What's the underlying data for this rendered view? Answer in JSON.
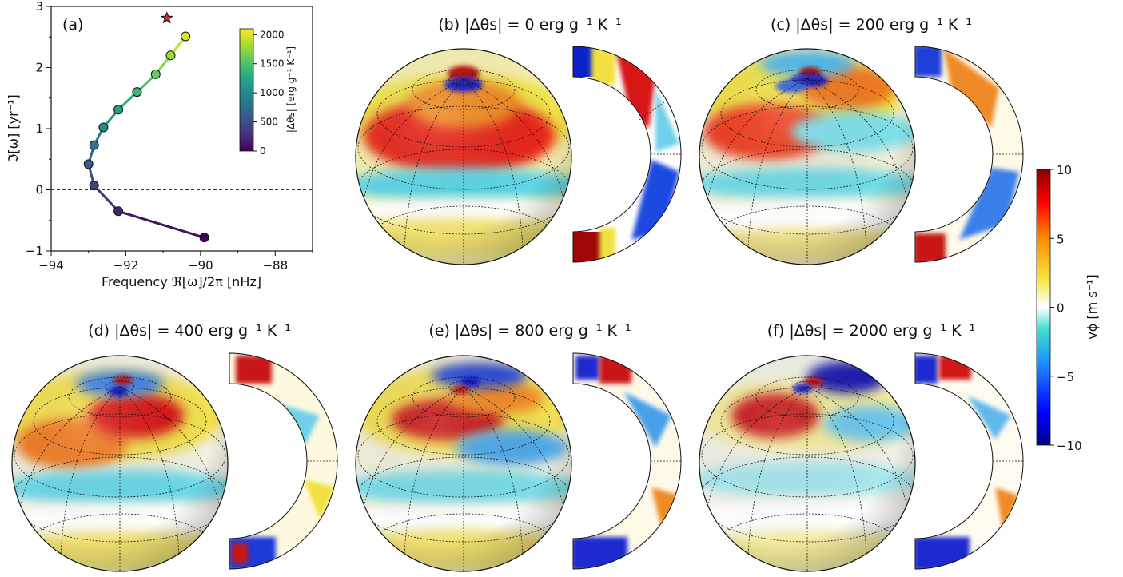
{
  "panel_a": {
    "label": "(a)",
    "xlabel": "Frequency ℜ[ω]/2π [nHz]",
    "ylabel": "ℑ[ω] [yr⁻¹]",
    "colorbar_label": "|Δθs| [erg g⁻¹ K⁻¹]",
    "colorbar_ticks": [
      "0",
      "500",
      "1000",
      "1500",
      "2000"
    ]
  },
  "chart_data": [
    {
      "type": "line",
      "xlim": [
        -94,
        -87
      ],
      "ylim": [
        -1,
        3
      ],
      "xticks": [
        "−94",
        "−92",
        "−90",
        "−88"
      ],
      "yticks": [
        "−1",
        "0",
        "1",
        "2",
        "3"
      ],
      "hline_y": 0,
      "points": [
        {
          "x": -89.9,
          "y": -0.78,
          "ds": 0
        },
        {
          "x": -92.2,
          "y": -0.35,
          "ds": 200
        },
        {
          "x": -92.85,
          "y": 0.07,
          "ds": 400
        },
        {
          "x": -93.0,
          "y": 0.42,
          "ds": 600
        },
        {
          "x": -92.85,
          "y": 0.73,
          "ds": 800
        },
        {
          "x": -92.6,
          "y": 1.02,
          "ds": 1000
        },
        {
          "x": -92.2,
          "y": 1.31,
          "ds": 1200
        },
        {
          "x": -91.7,
          "y": 1.6,
          "ds": 1400
        },
        {
          "x": -91.2,
          "y": 1.89,
          "ds": 1600
        },
        {
          "x": -90.8,
          "y": 2.2,
          "ds": 1800
        },
        {
          "x": -90.4,
          "y": 2.51,
          "ds": 2000
        }
      ],
      "star": {
        "x": -90.9,
        "y": 2.81
      },
      "color_range": [
        0,
        2100
      ]
    }
  ],
  "panels": [
    {
      "id": "b",
      "title": "(b) |Δθs| = 0 erg g⁻¹ K⁻¹"
    },
    {
      "id": "c",
      "title": "(c) |Δθs| = 200 erg g⁻¹ K⁻¹"
    },
    {
      "id": "d",
      "title": "(d) |Δθs| = 400 erg g⁻¹ K⁻¹"
    },
    {
      "id": "e",
      "title": "(e) |Δθs| = 800 erg g⁻¹ K⁻¹"
    },
    {
      "id": "f",
      "title": "(f) |Δθs| = 2000 erg g⁻¹ K⁻¹"
    }
  ],
  "vphi_colorbar": {
    "label": "vϕ [m s⁻¹]",
    "ticks": [
      "10",
      "5",
      "0",
      "−5",
      "−10"
    ],
    "range": [
      -10,
      10
    ]
  },
  "colors": {
    "viridis": [
      "#440154",
      "#472d7b",
      "#3b528b",
      "#2c728e",
      "#21918c",
      "#28ae80",
      "#5ec962",
      "#addc30",
      "#fde725"
    ],
    "jet_like": [
      "#00008b",
      "#0000ff",
      "#1e90ff",
      "#40e0d0",
      "#ffffff",
      "#f5e642",
      "#ff8c00",
      "#ff0000",
      "#8b0000"
    ]
  }
}
